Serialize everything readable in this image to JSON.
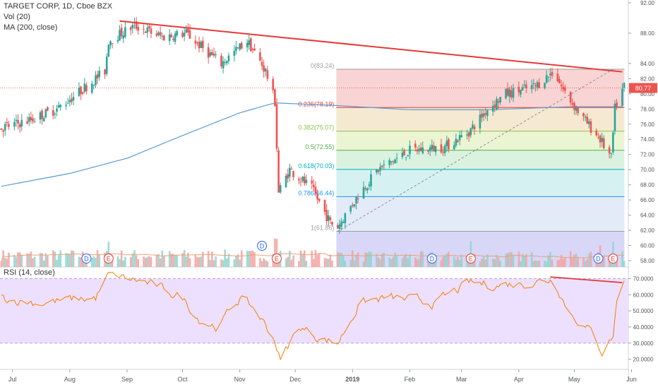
{
  "legend": {
    "symbol": "TARGET CORP, 1D, Cboe BZX",
    "volume": "Vol (20)",
    "ma": "MA (200, close)",
    "rsi": "RSI (14, close)"
  },
  "colors": {
    "up": "#26a69a",
    "down": "#ef5350",
    "ma": "#5b9bd5",
    "trendline": "#e53935",
    "rsi": "#f57c00",
    "rsi_band": "#ede0ff"
  },
  "chart_data": [
    {
      "type": "candlestick",
      "symbol": "TARGET CORP",
      "interval": "1D",
      "exchange": "Cboe BZX",
      "x_labels": [
        "Jul",
        "Aug",
        "Sep",
        "Oct",
        "Nov",
        "Dec",
        "2019",
        "Feb",
        "Mar",
        "Apr",
        "May",
        "Jun"
      ],
      "y_ticks": [
        "58.00",
        "60.00",
        "62.00",
        "64.00",
        "66.00",
        "68.00",
        "70.00",
        "72.00",
        "74.00",
        "76.00",
        "78.00",
        "80.00",
        "82.00",
        "84.00",
        "88.00",
        "92.00"
      ],
      "ylim": [
        58,
        92
      ],
      "last_price": "80.77",
      "fibonacci": [
        {
          "label": "0(83.24)",
          "value": 83.24
        },
        {
          "label": "0.236(78.19)",
          "value": 78.19
        },
        {
          "label": "0.382(75.07)",
          "value": 75.07
        },
        {
          "label": "0.5(72.55)",
          "value": 72.55
        },
        {
          "label": "0.618(70.03)",
          "value": 70.03
        },
        {
          "label": "0.786(66.44)",
          "value": 66.44
        },
        {
          "label": "1(61.86)",
          "value": 61.86
        }
      ],
      "earnings_markers": [
        "D",
        "E",
        "D",
        "E",
        "D",
        "E",
        "D",
        "E"
      ],
      "price_key": [
        [
          "2018-06-25",
          75.5
        ],
        [
          "2018-07-10",
          76.5
        ],
        [
          "2018-07-25",
          78
        ],
        [
          "2018-08-10",
          81
        ],
        [
          "2018-08-20",
          83
        ],
        [
          "2018-08-22",
          87
        ],
        [
          "2018-09-05",
          89
        ],
        [
          "2018-09-20",
          87.5
        ],
        [
          "2018-10-03",
          88
        ],
        [
          "2018-10-12",
          86
        ],
        [
          "2018-10-22",
          84
        ],
        [
          "2018-11-05",
          87
        ],
        [
          "2018-11-15",
          83
        ],
        [
          "2018-11-20",
          79
        ],
        [
          "2018-11-22",
          67
        ],
        [
          "2018-11-28",
          70
        ],
        [
          "2018-12-10",
          67.5
        ],
        [
          "2018-12-20",
          63
        ],
        [
          "2018-12-24",
          62.5
        ],
        [
          "2019-01-05",
          67
        ],
        [
          "2019-01-15",
          70
        ],
        [
          "2019-02-01",
          72.5
        ],
        [
          "2019-02-20",
          73
        ],
        [
          "2019-03-05",
          75
        ],
        [
          "2019-03-15",
          78
        ],
        [
          "2019-03-25",
          80
        ],
        [
          "2019-04-10",
          81
        ],
        [
          "2019-04-20",
          83
        ],
        [
          "2019-04-25",
          80.5
        ],
        [
          "2019-05-05",
          77
        ],
        [
          "2019-05-15",
          74
        ],
        [
          "2019-05-21",
          71.5
        ],
        [
          "2019-05-23",
          78
        ],
        [
          "2019-05-28",
          81
        ]
      ],
      "ma200": [
        [
          "2018-06-25",
          67.8
        ],
        [
          "2018-08-01",
          69.5
        ],
        [
          "2018-09-01",
          71.5
        ],
        [
          "2018-10-01",
          74.5
        ],
        [
          "2018-11-01",
          77.5
        ],
        [
          "2018-11-20",
          78.8
        ],
        [
          "2018-12-20",
          78.5
        ],
        [
          "2019-02-01",
          77.9
        ],
        [
          "2019-03-15",
          77.9
        ],
        [
          "2019-04-30",
          78.3
        ],
        [
          "2019-05-28",
          78.3
        ]
      ],
      "trendline": [
        [
          "2018-08-28",
          89.6
        ],
        [
          "2019-05-27",
          82.9
        ]
      ],
      "dashed_line": [
        [
          "2018-12-24",
          61.86
        ],
        [
          "2019-05-22",
          83.24
        ]
      ],
      "volume_ratio_range": [
        0.2,
        1.0
      ]
    },
    {
      "type": "line",
      "name": "RSI (14, close)",
      "y_ticks": [
        "20.0000",
        "30.0000",
        "40.0000",
        "50.0000",
        "60.0000",
        "70.0000"
      ],
      "ylim": [
        15,
        75
      ],
      "band": [
        30,
        70
      ],
      "key": [
        [
          "2018-06-25",
          58
        ],
        [
          "2018-07-15",
          55
        ],
        [
          "2018-08-15",
          58
        ],
        [
          "2018-08-22",
          72
        ],
        [
          "2018-09-10",
          68
        ],
        [
          "2018-10-01",
          58
        ],
        [
          "2018-10-10",
          45
        ],
        [
          "2018-10-20",
          40
        ],
        [
          "2018-11-01",
          58
        ],
        [
          "2018-11-10",
          50
        ],
        [
          "2018-11-20",
          32
        ],
        [
          "2018-11-23",
          19
        ],
        [
          "2018-12-03",
          40
        ],
        [
          "2018-12-15",
          33
        ],
        [
          "2018-12-24",
          30
        ],
        [
          "2019-01-05",
          55
        ],
        [
          "2019-01-20",
          58
        ],
        [
          "2019-02-15",
          55
        ],
        [
          "2019-03-05",
          67
        ],
        [
          "2019-03-20",
          66
        ],
        [
          "2019-04-10",
          68
        ],
        [
          "2019-04-20",
          70
        ],
        [
          "2019-04-28",
          50
        ],
        [
          "2019-05-10",
          37
        ],
        [
          "2019-05-16",
          25
        ],
        [
          "2019-05-22",
          35
        ],
        [
          "2019-05-25",
          66
        ],
        [
          "2019-05-28",
          68
        ]
      ],
      "trendline": [
        [
          "2019-04-18",
          71
        ],
        [
          "2019-05-27",
          67.5
        ]
      ]
    }
  ]
}
